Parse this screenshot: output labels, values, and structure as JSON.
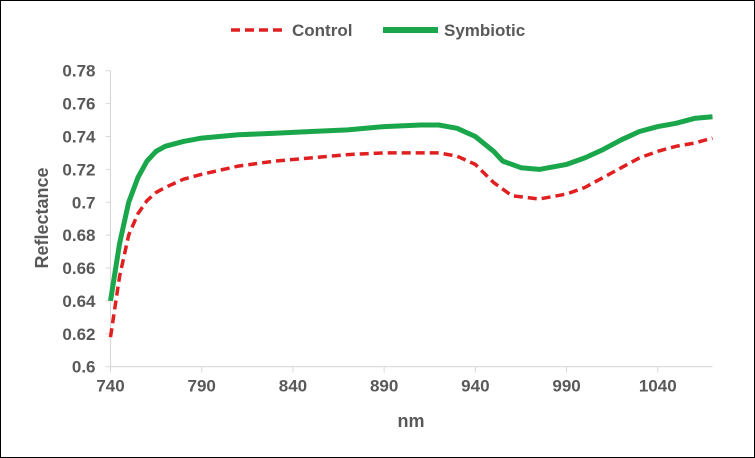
{
  "chart_data": {
    "type": "line",
    "title": "",
    "xlabel": "nm",
    "ylabel": "Reflectance",
    "xlim": [
      740,
      1070
    ],
    "ylim": [
      0.6,
      0.78
    ],
    "x_ticks": [
      "740",
      "790",
      "840",
      "890",
      "940",
      "990",
      "1040"
    ],
    "y_ticks": [
      "0.6",
      "0.62",
      "0.64",
      "0.66",
      "0.68",
      "0.7",
      "0.72",
      "0.74",
      "0.76",
      "0.78"
    ],
    "grid": false,
    "legend_position": "top",
    "series": [
      {
        "name": "Control",
        "color": "#e02020",
        "style": "dashed",
        "x": [
          740,
          745,
          750,
          755,
          760,
          765,
          770,
          780,
          790,
          810,
          830,
          850,
          870,
          890,
          910,
          920,
          930,
          940,
          950,
          960,
          975,
          990,
          1000,
          1010,
          1020,
          1030,
          1040,
          1050,
          1060,
          1070
        ],
        "y": [
          0.618,
          0.655,
          0.68,
          0.693,
          0.701,
          0.706,
          0.709,
          0.714,
          0.717,
          0.722,
          0.725,
          0.727,
          0.729,
          0.73,
          0.73,
          0.73,
          0.728,
          0.723,
          0.712,
          0.704,
          0.702,
          0.705,
          0.709,
          0.715,
          0.721,
          0.727,
          0.731,
          0.734,
          0.736,
          0.739
        ]
      },
      {
        "name": "Symbiotic",
        "color": "#1aa64a",
        "style": "solid",
        "x": [
          740,
          745,
          750,
          755,
          760,
          765,
          770,
          780,
          790,
          810,
          830,
          850,
          870,
          890,
          910,
          920,
          930,
          940,
          950,
          955,
          965,
          975,
          990,
          1000,
          1010,
          1020,
          1030,
          1040,
          1050,
          1060,
          1070
        ],
        "y": [
          0.64,
          0.675,
          0.7,
          0.715,
          0.725,
          0.731,
          0.734,
          0.737,
          0.739,
          0.741,
          0.742,
          0.743,
          0.744,
          0.746,
          0.747,
          0.747,
          0.745,
          0.74,
          0.731,
          0.725,
          0.721,
          0.72,
          0.723,
          0.727,
          0.732,
          0.738,
          0.743,
          0.746,
          0.748,
          0.751,
          0.752
        ]
      }
    ]
  }
}
